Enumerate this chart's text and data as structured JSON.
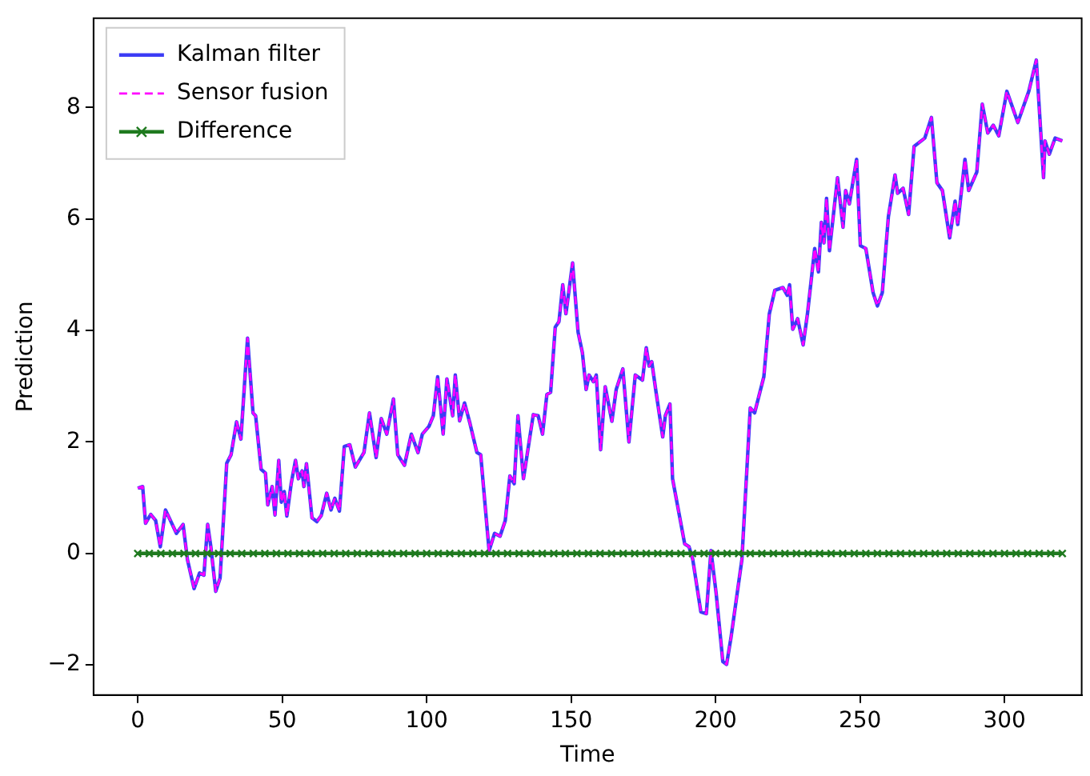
{
  "chart_data": {
    "type": "line",
    "xlabel": "Time",
    "ylabel": "Prediction",
    "xlim": [
      -15.3,
      326.7
    ],
    "ylim": [
      -2.54,
      9.6
    ],
    "xticks": [
      0,
      50,
      100,
      150,
      200,
      250,
      300
    ],
    "yticks": [
      {
        "value": -2,
        "label": "−2"
      },
      0,
      2,
      4,
      6,
      8
    ],
    "legend": "top left",
    "grid": false,
    "series": [
      {
        "name": "Kalman filter",
        "color": "#3c3cf5",
        "line_style": "solid",
        "marker": "none",
        "x": [
          0,
          1.7,
          2.7,
          4.5,
          6.2,
          7.8,
          9.6,
          13.4,
          15.7,
          17.2,
          19.5,
          21.4,
          22.9,
          24.2,
          25.3,
          27,
          28.5,
          30.8,
          32.3,
          34.2,
          35.7,
          38,
          39.9,
          40.8,
          42.7,
          44.2,
          45,
          46.5,
          47.5,
          48.8,
          49.7,
          50.7,
          51.6,
          53.1,
          54.6,
          55.6,
          56.9,
          57.5,
          58.4,
          60.3,
          62,
          63.5,
          65.4,
          66.9,
          68.2,
          69.8,
          71.5,
          73.4,
          75.3,
          78.3,
          80.2,
          82.5,
          84.3,
          86.2,
          88.5,
          90,
          92.3,
          94.7,
          97,
          98.5,
          100.8,
          102.3,
          103.8,
          105.7,
          107,
          109,
          109.9,
          111.4,
          113.1,
          115,
          117.4,
          118.7,
          121.6,
          123.5,
          125.4,
          127.2,
          128.8,
          130.3,
          131.6,
          133.5,
          136.9,
          138.6,
          140.1,
          141.6,
          142.9,
          144.5,
          145.8,
          147.1,
          148.2,
          150.5,
          152.4,
          153.9,
          155.2,
          156.2,
          157.7,
          158.7,
          160.2,
          161.8,
          164.1,
          165.6,
          167.9,
          170,
          172.2,
          174.7,
          176,
          177,
          177.9,
          179.4,
          181.7,
          182.6,
          184.2,
          185.1,
          189.3,
          190.8,
          192.1,
          194.9,
          196.8,
          198.4,
          200.2,
          202.5,
          203.8,
          205.3,
          209.1,
          212,
          213.5,
          216.7,
          218.6,
          220.5,
          223.3,
          224.8,
          225.6,
          226.7,
          228.4,
          230.3,
          231.8,
          234.3,
          235.6,
          236.6,
          237.5,
          238.4,
          239.4,
          242.2,
          244.1,
          245,
          246.3,
          248.8,
          250.1,
          252,
          254.5,
          256,
          257.7,
          259.8,
          262.1,
          263,
          264.9,
          266.8,
          268.7,
          272.4,
          274.7,
          276.6,
          278.5,
          281,
          282.9,
          283.8,
          286.3,
          287.6,
          290.4,
          292.3,
          294.2,
          296.1,
          298,
          300.8,
          304.6,
          308.4,
          311,
          313.5,
          314,
          315.5,
          317.5,
          320
        ],
        "values": [
          1.17,
          1.2,
          0.54,
          0.7,
          0.59,
          0.12,
          0.78,
          0.36,
          0.52,
          -0.11,
          -0.63,
          -0.35,
          -0.39,
          0.52,
          0.12,
          -0.68,
          -0.44,
          1.62,
          1.77,
          2.36,
          2.05,
          3.86,
          2.52,
          2.47,
          1.51,
          1.44,
          0.87,
          1.2,
          0.69,
          1.67,
          0.92,
          1.11,
          0.67,
          1.25,
          1.67,
          1.34,
          1.48,
          1.2,
          1.61,
          0.64,
          0.57,
          0.68,
          1.08,
          0.78,
          0.99,
          0.76,
          1.92,
          1.95,
          1.55,
          1.81,
          2.52,
          1.72,
          2.42,
          2.14,
          2.77,
          1.77,
          1.58,
          2.14,
          1.81,
          2.14,
          2.28,
          2.47,
          3.17,
          2.14,
          3.13,
          2.47,
          3.2,
          2.38,
          2.7,
          2.33,
          1.81,
          1.77,
          0.05,
          0.36,
          0.31,
          0.59,
          1.39,
          1.25,
          2.47,
          1.34,
          2.49,
          2.47,
          2.14,
          2.85,
          2.89,
          4.06,
          4.16,
          4.82,
          4.3,
          5.21,
          3.97,
          3.6,
          2.94,
          3.2,
          3.08,
          3.2,
          1.86,
          2.99,
          2.37,
          2.94,
          3.31,
          2,
          3.2,
          3.11,
          3.69,
          3.36,
          3.44,
          2.89,
          2.09,
          2.47,
          2.68,
          1.34,
          0.17,
          0.12,
          -0.11,
          -1.05,
          -1.08,
          0.05,
          -0.72,
          -1.94,
          -1.99,
          -1.52,
          -0.11,
          2.61,
          2.52,
          3.17,
          4.3,
          4.72,
          4.77,
          4.63,
          4.82,
          4.02,
          4.21,
          3.74,
          4.3,
          5.47,
          5.05,
          5.94,
          5.57,
          6.37,
          5.43,
          6.74,
          5.85,
          6.51,
          6.27,
          7.07,
          5.52,
          5.47,
          4.68,
          4.44,
          4.68,
          6.04,
          6.79,
          6.46,
          6.55,
          6.08,
          7.3,
          7.45,
          7.82,
          6.65,
          6.51,
          5.66,
          6.32,
          5.9,
          7.07,
          6.51,
          6.84,
          8.06,
          7.54,
          7.68,
          7.49,
          8.29,
          7.73,
          8.29,
          8.85,
          6.74,
          7.4,
          7.16,
          7.45,
          7.4
        ]
      },
      {
        "name": "Sensor fusion",
        "color": "#ff00ff",
        "line_style": "dashed",
        "marker": "none",
        "x": [
          0,
          1.7,
          2.7,
          4.5,
          6.2,
          7.8,
          9.6,
          13.4,
          15.7,
          17.2,
          19.5,
          21.4,
          22.9,
          24.2,
          25.3,
          27,
          28.5,
          30.8,
          32.3,
          34.2,
          35.7,
          38,
          39.9,
          40.8,
          42.7,
          44.2,
          45,
          46.5,
          47.5,
          48.8,
          49.7,
          50.7,
          51.6,
          53.1,
          54.6,
          55.6,
          56.9,
          57.5,
          58.4,
          60.3,
          62,
          63.5,
          65.4,
          66.9,
          68.2,
          69.8,
          71.5,
          73.4,
          75.3,
          78.3,
          80.2,
          82.5,
          84.3,
          86.2,
          88.5,
          90,
          92.3,
          94.7,
          97,
          98.5,
          100.8,
          102.3,
          103.8,
          105.7,
          107,
          109,
          109.9,
          111.4,
          113.1,
          115,
          117.4,
          118.7,
          121.6,
          123.5,
          125.4,
          127.2,
          128.8,
          130.3,
          131.6,
          133.5,
          136.9,
          138.6,
          140.1,
          141.6,
          142.9,
          144.5,
          145.8,
          147.1,
          148.2,
          150.5,
          152.4,
          153.9,
          155.2,
          156.2,
          157.7,
          158.7,
          160.2,
          161.8,
          164.1,
          165.6,
          167.9,
          170,
          172.2,
          174.7,
          176,
          177,
          177.9,
          179.4,
          181.7,
          182.6,
          184.2,
          185.1,
          189.3,
          190.8,
          192.1,
          194.9,
          196.8,
          198.4,
          200.2,
          202.5,
          203.8,
          205.3,
          209.1,
          212,
          213.5,
          216.7,
          218.6,
          220.5,
          223.3,
          224.8,
          225.6,
          226.7,
          228.4,
          230.3,
          231.8,
          234.3,
          235.6,
          236.6,
          237.5,
          238.4,
          239.4,
          242.2,
          244.1,
          245,
          246.3,
          248.8,
          250.1,
          252,
          254.5,
          256,
          257.7,
          259.8,
          262.1,
          263,
          264.9,
          266.8,
          268.7,
          272.4,
          274.7,
          276.6,
          278.5,
          281,
          282.9,
          283.8,
          286.3,
          287.6,
          290.4,
          292.3,
          294.2,
          296.1,
          298,
          300.8,
          304.6,
          308.4,
          311,
          313.5,
          314,
          315.5,
          317.5,
          320
        ],
        "values": [
          1.17,
          1.2,
          0.54,
          0.7,
          0.59,
          0.12,
          0.78,
          0.36,
          0.52,
          -0.11,
          -0.63,
          -0.35,
          -0.39,
          0.52,
          0.12,
          -0.68,
          -0.44,
          1.62,
          1.77,
          2.36,
          2.05,
          3.86,
          2.52,
          2.47,
          1.51,
          1.44,
          0.87,
          1.2,
          0.69,
          1.67,
          0.92,
          1.11,
          0.67,
          1.25,
          1.67,
          1.34,
          1.48,
          1.2,
          1.61,
          0.64,
          0.57,
          0.68,
          1.08,
          0.78,
          0.99,
          0.76,
          1.92,
          1.95,
          1.55,
          1.81,
          2.52,
          1.72,
          2.42,
          2.14,
          2.77,
          1.77,
          1.58,
          2.14,
          1.81,
          2.14,
          2.28,
          2.47,
          3.17,
          2.14,
          3.13,
          2.47,
          3.2,
          2.38,
          2.7,
          2.33,
          1.81,
          1.77,
          0.05,
          0.36,
          0.31,
          0.59,
          1.39,
          1.25,
          2.47,
          1.34,
          2.49,
          2.47,
          2.14,
          2.85,
          2.89,
          4.06,
          4.16,
          4.82,
          4.3,
          5.21,
          3.97,
          3.6,
          2.94,
          3.2,
          3.08,
          3.2,
          1.86,
          2.99,
          2.37,
          2.94,
          3.31,
          2,
          3.2,
          3.11,
          3.69,
          3.36,
          3.44,
          2.89,
          2.09,
          2.47,
          2.68,
          1.34,
          0.17,
          0.12,
          -0.11,
          -1.05,
          -1.08,
          0.05,
          -0.72,
          -1.94,
          -1.99,
          -1.52,
          -0.11,
          2.61,
          2.52,
          3.17,
          4.3,
          4.72,
          4.77,
          4.63,
          4.82,
          4.02,
          4.21,
          3.74,
          4.3,
          5.47,
          5.05,
          5.94,
          5.57,
          6.37,
          5.43,
          6.74,
          5.85,
          6.51,
          6.27,
          7.07,
          5.52,
          5.47,
          4.68,
          4.44,
          4.68,
          6.04,
          6.79,
          6.46,
          6.55,
          6.08,
          7.3,
          7.45,
          7.82,
          6.65,
          6.51,
          5.66,
          6.32,
          5.9,
          7.07,
          6.51,
          6.84,
          8.06,
          7.54,
          7.68,
          7.49,
          8.29,
          7.73,
          8.29,
          8.85,
          6.74,
          7.4,
          7.16,
          7.45,
          7.4
        ]
      },
      {
        "name": "Difference",
        "color": "#1f7a1f",
        "line_style": "solid",
        "marker": "cross",
        "x": [
          0,
          4,
          8,
          12,
          16,
          20,
          24,
          28,
          32,
          36,
          40,
          44,
          48,
          52,
          56,
          60,
          64,
          68,
          72,
          76,
          80,
          84,
          88,
          92,
          96,
          100,
          104,
          108,
          112,
          116,
          120,
          124,
          128,
          132,
          136,
          140,
          144,
          148,
          152,
          156,
          160,
          164,
          168,
          172,
          176,
          180,
          184,
          188,
          192,
          196,
          200,
          204,
          208,
          212,
          216,
          220,
          224,
          228,
          232,
          236,
          240,
          244,
          248,
          252,
          256,
          260,
          264,
          268,
          272,
          276,
          280,
          284,
          288,
          292,
          296,
          300,
          304,
          308,
          312,
          316,
          320
        ],
        "values": [
          0,
          0,
          0,
          0,
          0,
          0,
          0,
          0,
          0,
          0,
          0,
          0,
          0,
          0,
          0,
          0,
          0,
          0,
          0,
          0,
          0,
          0,
          0,
          0,
          0,
          0,
          0,
          0,
          0,
          0,
          0,
          0,
          0,
          0,
          0,
          0,
          0,
          0,
          0,
          0,
          0,
          0,
          0,
          0,
          0,
          0,
          0,
          0,
          0,
          0,
          0,
          0,
          0,
          0,
          0,
          0,
          0,
          0,
          0,
          0,
          0,
          0,
          0,
          0,
          0,
          0,
          0,
          0,
          0,
          0,
          0,
          0,
          0,
          0,
          0,
          0,
          0,
          0,
          0,
          0,
          0
        ]
      }
    ]
  }
}
